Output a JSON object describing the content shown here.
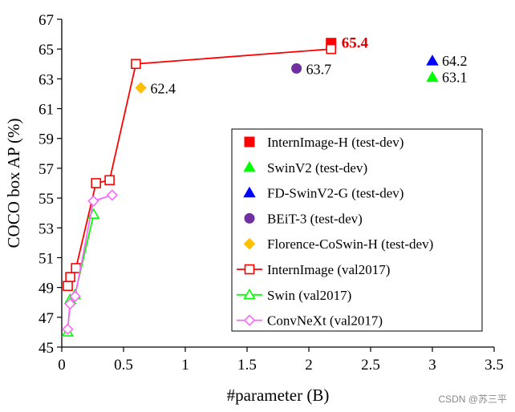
{
  "chart_data": {
    "type": "scatter",
    "title": "",
    "xlabel": "#parameter (B)",
    "ylabel": "COCO box AP (%)",
    "xlim": [
      0,
      3.5
    ],
    "ylim": [
      45,
      67
    ],
    "xticks": [
      "0",
      "0.5",
      "1",
      "1.5",
      "2",
      "2.5",
      "3",
      "3.5"
    ],
    "yticks": [
      "45",
      "47",
      "49",
      "51",
      "53",
      "55",
      "57",
      "59",
      "61",
      "63",
      "65",
      "67"
    ],
    "series": [
      {
        "name": "InternImage-H (test-dev)",
        "kind": "marker",
        "marker": "square-filled",
        "color": "#ff0000",
        "points": [
          {
            "x": 2.18,
            "y": 65.4
          }
        ]
      },
      {
        "name": "SwinV2 (test-dev)",
        "kind": "marker",
        "marker": "triangle-filled",
        "color": "#00ff00",
        "points": [
          {
            "x": 3.0,
            "y": 63.1
          }
        ]
      },
      {
        "name": "FD-SwinV2-G (test-dev)",
        "kind": "marker",
        "marker": "triangle-filled",
        "color": "#0000ff",
        "points": [
          {
            "x": 3.0,
            "y": 64.2
          }
        ]
      },
      {
        "name": "BEiT-3 (test-dev)",
        "kind": "marker",
        "marker": "circle-filled",
        "color": "#7030a0",
        "points": [
          {
            "x": 1.9,
            "y": 63.7
          }
        ]
      },
      {
        "name": "Florence-CoSwin-H (test-dev)",
        "kind": "marker",
        "marker": "diamond-filled",
        "color": "#ffc000",
        "points": [
          {
            "x": 0.64,
            "y": 62.4
          }
        ]
      },
      {
        "name": "InternImage (val2017)",
        "kind": "line",
        "marker": "square-open",
        "color": "#ff0000",
        "points": [
          {
            "x": 0.049,
            "y": 49.1
          },
          {
            "x": 0.069,
            "y": 49.7
          },
          {
            "x": 0.115,
            "y": 50.3
          },
          {
            "x": 0.277,
            "y": 56.0
          },
          {
            "x": 0.387,
            "y": 56.2
          },
          {
            "x": 0.6,
            "y": 64.0
          },
          {
            "x": 2.18,
            "y": 65.0
          }
        ]
      },
      {
        "name": "Swin (val2017)",
        "kind": "line",
        "marker": "triangle-open",
        "color": "#00ff00",
        "points": [
          {
            "x": 0.048,
            "y": 46.0
          },
          {
            "x": 0.069,
            "y": 48.2
          },
          {
            "x": 0.107,
            "y": 48.5
          },
          {
            "x": 0.258,
            "y": 53.9
          }
        ]
      },
      {
        "name": "ConvNeXt (val2017)",
        "kind": "line",
        "marker": "diamond-open",
        "color": "#ff66ff",
        "points": [
          {
            "x": 0.048,
            "y": 46.2
          },
          {
            "x": 0.067,
            "y": 47.9
          },
          {
            "x": 0.108,
            "y": 48.4
          },
          {
            "x": 0.256,
            "y": 54.8
          },
          {
            "x": 0.408,
            "y": 55.2
          }
        ]
      }
    ],
    "legend_position": "center-right",
    "legend_labels": [
      "InternImage-H (test-dev)",
      "SwinV2 (test-dev)",
      "FD-SwinV2-G (test-dev)",
      "BEiT-3 (test-dev)",
      "Florence-CoSwin-H (test-dev)",
      "InternImage (val2017)",
      "Swin (val2017)",
      "ConvNeXt (val2017)"
    ],
    "annotations": [
      {
        "text": "65.4",
        "x": 2.18,
        "y": 65.4,
        "style": "bold-red"
      },
      {
        "text": "64.2",
        "x": 3.0,
        "y": 64.2,
        "style": "normal"
      },
      {
        "text": "63.7",
        "x": 1.9,
        "y": 63.7,
        "style": "normal"
      },
      {
        "text": "63.1",
        "x": 3.0,
        "y": 63.1,
        "style": "normal"
      },
      {
        "text": "62.4",
        "x": 0.64,
        "y": 62.4,
        "style": "normal"
      }
    ],
    "grid": false
  },
  "watermark": "CSDN @苏三平"
}
